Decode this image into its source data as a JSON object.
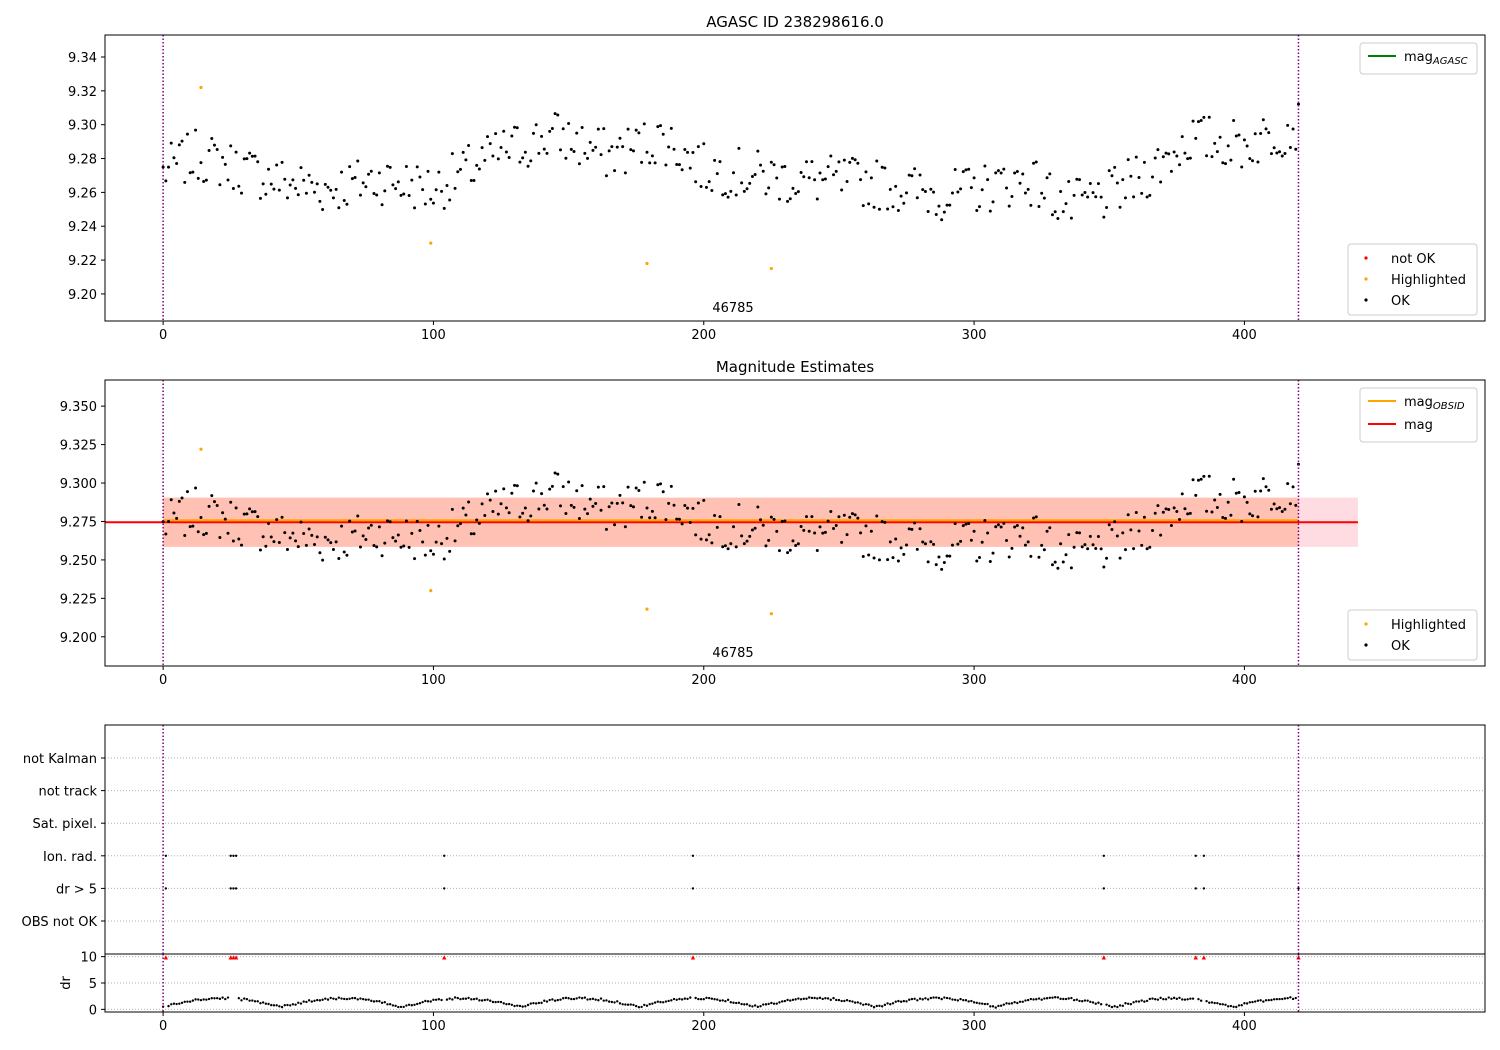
{
  "chart_data": [
    {
      "id": "top",
      "type": "scatter",
      "title": "AGASC ID 238298616.0",
      "annotation": "46785",
      "xlim": [
        -21.5,
        489
      ],
      "ylim": [
        9.184,
        9.353
      ],
      "xticks": [
        0,
        100,
        200,
        300,
        400
      ],
      "yticks": [
        9.2,
        9.22,
        9.24,
        9.26,
        9.28,
        9.3,
        9.32,
        9.34
      ],
      "ytick_decimals": 2,
      "vlines": [
        0,
        420
      ],
      "legend_lines": [
        {
          "label": "mag",
          "sub": "AGASC",
          "color": "#008000"
        }
      ],
      "legend_points": [
        {
          "label": "not OK",
          "color": "#ff0000"
        },
        {
          "label": "Highlighted",
          "color": "#ffa500"
        },
        {
          "label": "OK",
          "color": "#000000"
        }
      ],
      "highlighted": [
        [
          14,
          9.322
        ],
        [
          99,
          9.23
        ],
        [
          179,
          9.218
        ],
        [
          225,
          9.215
        ]
      ]
    },
    {
      "id": "mid",
      "type": "scatter",
      "title": "Magnitude Estimates",
      "annotation": "46785",
      "xlim": [
        -21.5,
        489
      ],
      "ylim": [
        9.181,
        9.367
      ],
      "xticks": [
        0,
        100,
        200,
        300,
        400
      ],
      "yticks": [
        9.2,
        9.225,
        9.25,
        9.275,
        9.3,
        9.325,
        9.35
      ],
      "ytick_decimals": 3,
      "vlines": [
        0,
        420
      ],
      "mag_obsid": 9.2745,
      "mag": 9.2745,
      "band_mag": [
        9.2585,
        9.2905
      ],
      "band_obsid": [
        9.2585,
        9.2905
      ],
      "band_mag_xmax": 442,
      "legend_lines": [
        {
          "label": "mag",
          "sub": "OBSID",
          "color": "#ffa500"
        },
        {
          "label": "mag",
          "sub": "",
          "color": "#ff0000"
        }
      ],
      "legend_points": [
        {
          "label": "Highlighted",
          "color": "#ffa500"
        },
        {
          "label": "OK",
          "color": "#000000"
        }
      ],
      "highlighted": [
        [
          14,
          9.322
        ],
        [
          99,
          9.23
        ],
        [
          179,
          9.218
        ],
        [
          225,
          9.215
        ]
      ]
    },
    {
      "id": "flags",
      "type": "scatter",
      "categories": [
        "not Kalman",
        "not track",
        "Sat. pixel.",
        "Ion. rad.",
        "dr > 5",
        "OBS not OK"
      ],
      "flag_x": [
        1,
        25,
        26,
        27,
        104,
        196,
        348,
        382,
        385,
        420
      ],
      "xlim": [
        -21.5,
        489
      ],
      "vlines": [
        0,
        420
      ]
    },
    {
      "id": "dr",
      "type": "scatter",
      "ylabel": "dr",
      "xlim": [
        -21.5,
        489
      ],
      "ylim": [
        -0.5,
        10.5
      ],
      "xticks": [
        0,
        100,
        200,
        300,
        400
      ],
      "yticks": [
        0,
        5,
        10
      ],
      "vlines": [
        0,
        420
      ],
      "dr_big_x": [
        1,
        25,
        26,
        27,
        104,
        196,
        348,
        382,
        385,
        420
      ],
      "dr_big_value": 9.8
    }
  ],
  "colors": {
    "ok": "#000000",
    "highlighted": "#ffa500",
    "not_ok": "#ff0000",
    "vline": "#800080",
    "band_mag": "#ffc0cb",
    "band_obsid": "#ffa07a"
  }
}
